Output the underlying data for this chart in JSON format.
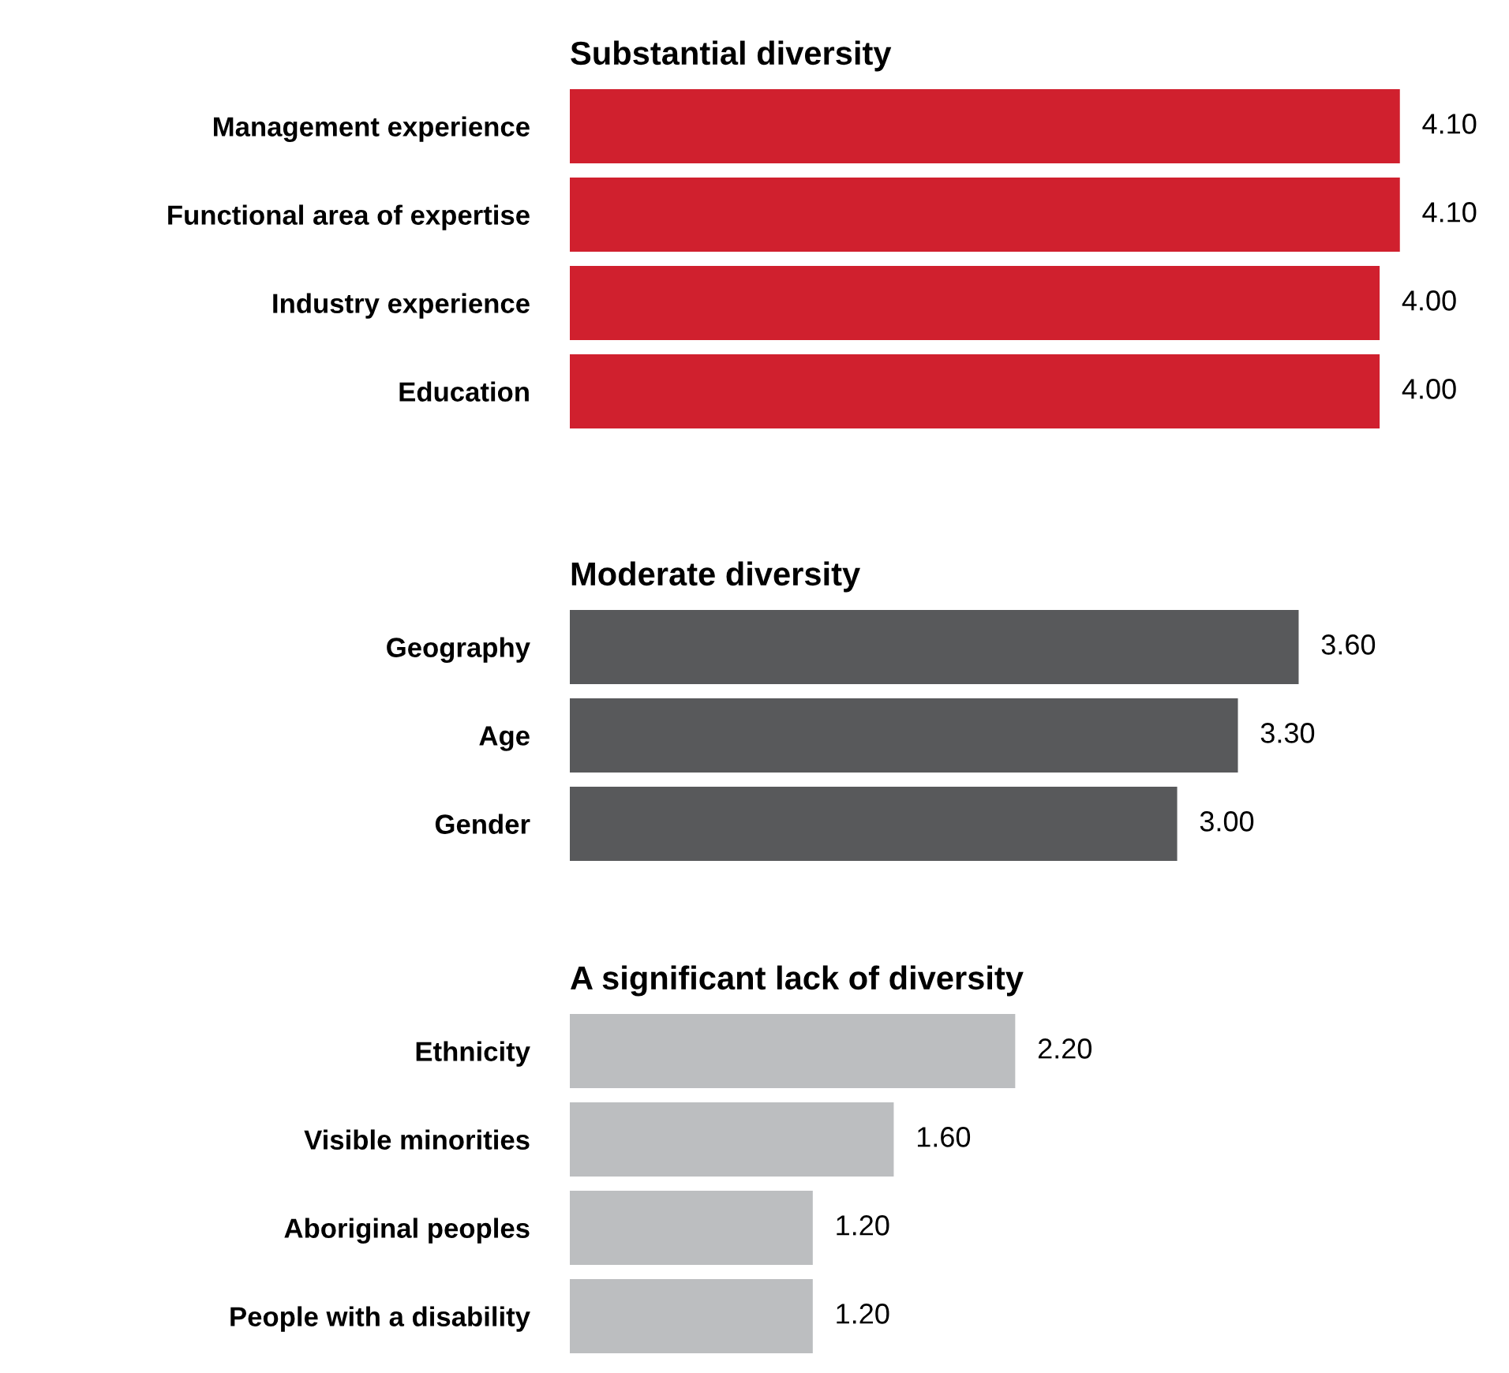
{
  "chart_data": [
    {
      "type": "bar",
      "orientation": "horizontal",
      "title": "Substantial diversity",
      "categories": [
        "Management experience",
        "Functional area of expertise",
        "Industry experience",
        "Education"
      ],
      "values": [
        4.1,
        4.1,
        4.0,
        4.0
      ],
      "value_labels": [
        "4.10",
        "4.10",
        "4.00",
        "4.00"
      ],
      "color": "#d0202e",
      "tick_labels": "y"
    },
    {
      "type": "bar",
      "orientation": "horizontal",
      "title": "Moderate diversity",
      "categories": [
        "Geography",
        "Age",
        "Gender"
      ],
      "values": [
        3.6,
        3.3,
        3.0
      ],
      "value_labels": [
        "3.60",
        "3.30",
        "3.00"
      ],
      "color": "#58595b",
      "tick_labels": "y"
    },
    {
      "type": "bar",
      "orientation": "horizontal",
      "title": "A significant lack of diversity",
      "categories": [
        "Ethnicity",
        "Visible minorities",
        "Aboriginal peoples",
        "People with a disability"
      ],
      "values": [
        2.2,
        1.6,
        1.2,
        1.2
      ],
      "value_labels": [
        "2.20",
        "1.60",
        "1.20",
        "1.20"
      ],
      "color": "#bcbec0",
      "tick_labels": "y"
    }
  ]
}
